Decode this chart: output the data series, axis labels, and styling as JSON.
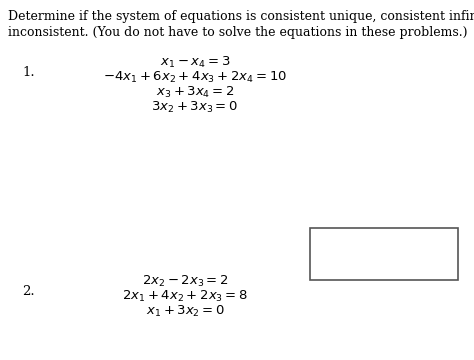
{
  "background_color": "#ffffff",
  "title_line1": "Determine if the system of equations is consistent unique, consistent infinite, or",
  "title_line2": "inconsistent. (You do not have to solve the equations in these problems.)",
  "problem1_label": "1.",
  "problem1_eq1": "$x_1 - x_4 = 3$",
  "problem1_eq2": "$-4x_1 + 6x_2 + 4x_3 + 2x_4 = 10$",
  "problem1_eq3": "$x_3 + 3x_4 = 2$",
  "problem1_eq4": "$3x_2 + 3x_3 = 0$",
  "problem2_label": "2.",
  "problem2_eq1": "$2x_2 - 2x_3 = 2$",
  "problem2_eq2": "$2x_1 + 4x_2 + 2x_3 = 8$",
  "problem2_eq3": "$x_1 + 3x_2 = 0$",
  "font_size_title": 9.0,
  "font_size_eq": 9.5
}
